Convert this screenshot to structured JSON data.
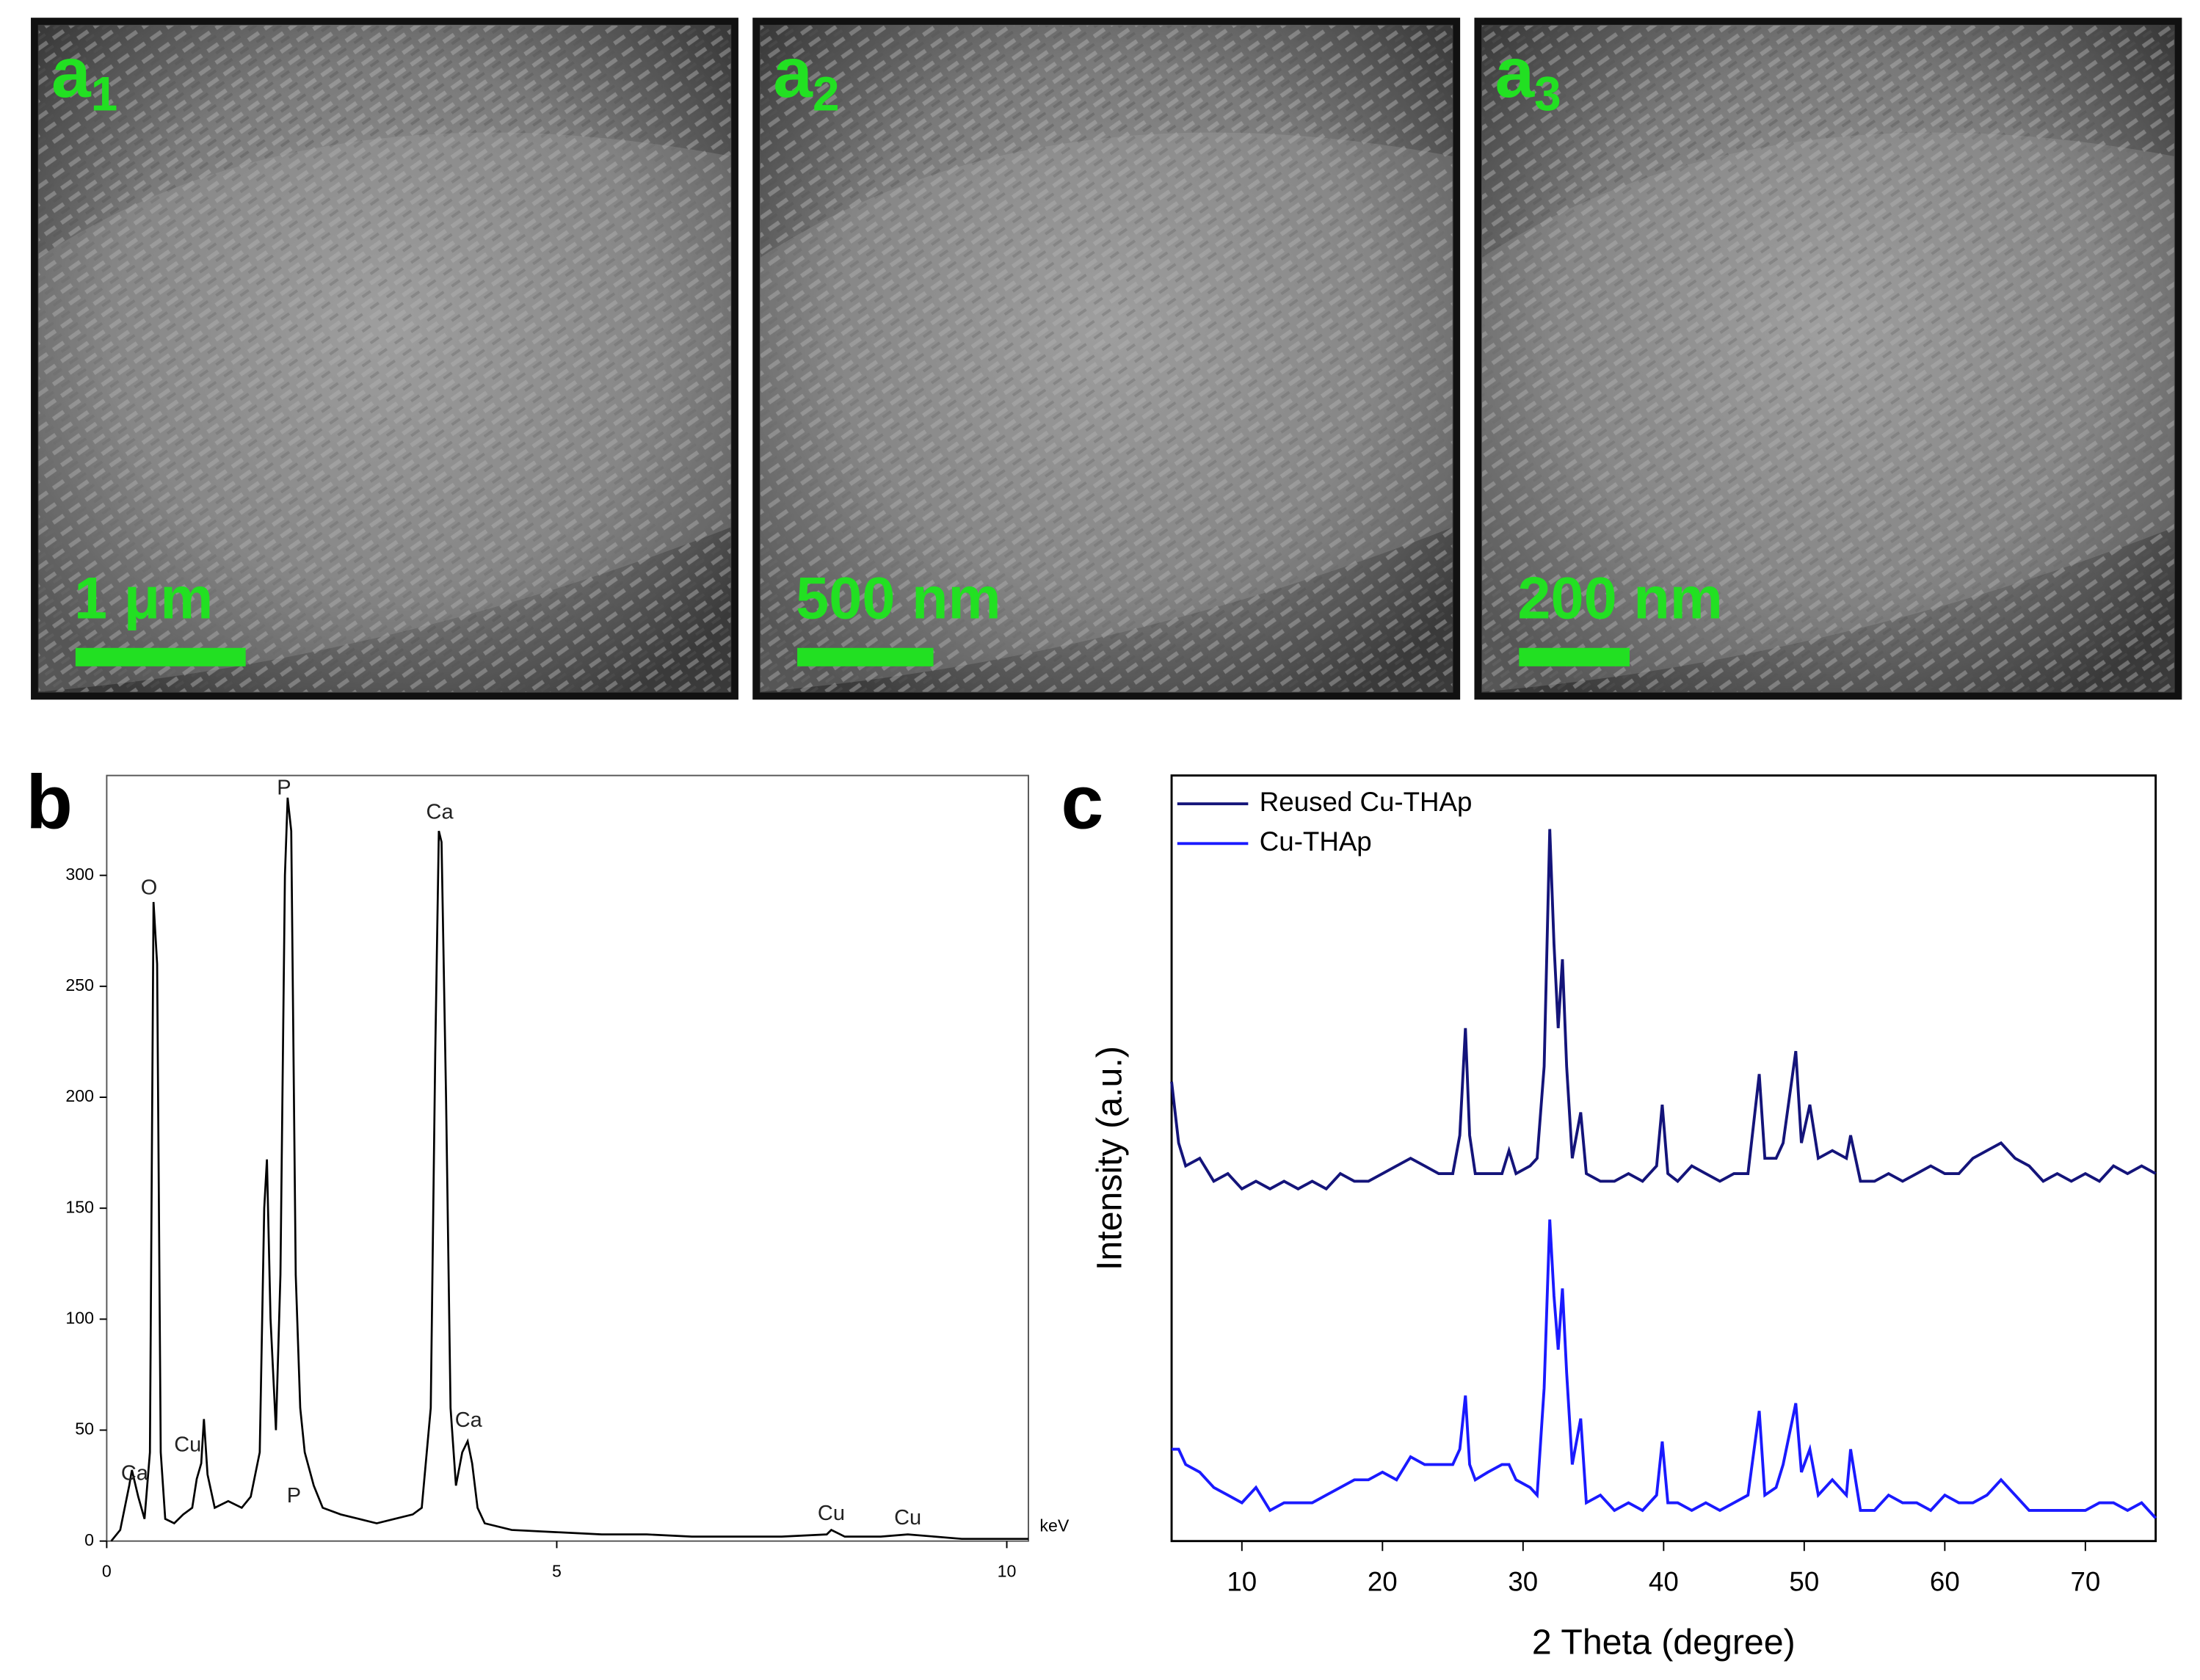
{
  "images": [
    {
      "label": "a",
      "subscript": "1",
      "scale_bar": "1 μm"
    },
    {
      "label": "a",
      "subscript": "2",
      "scale_bar": "500 nm"
    },
    {
      "label": "a",
      "subscript": "3",
      "scale_bar": "200 nm"
    }
  ],
  "chart_data": [
    {
      "type": "line",
      "panel_label": "b",
      "x_label": "keV",
      "x": [
        0.05,
        0.15,
        0.25,
        0.28,
        0.35,
        0.42,
        0.48,
        0.52,
        0.56,
        0.6,
        0.65,
        0.75,
        0.85,
        0.95,
        1.0,
        1.05,
        1.08,
        1.12,
        1.2,
        1.35,
        1.5,
        1.6,
        1.7,
        1.75,
        1.78,
        1.82,
        1.88,
        1.93,
        1.98,
        2.01,
        2.05,
        2.1,
        2.15,
        2.2,
        2.3,
        2.4,
        2.6,
        2.8,
        3.0,
        3.2,
        3.4,
        3.5,
        3.6,
        3.65,
        3.69,
        3.72,
        3.77,
        3.82,
        3.88,
        3.95,
        4.01,
        4.06,
        4.12,
        4.2,
        4.5,
        5.0,
        5.5,
        6.0,
        6.5,
        7.0,
        7.5,
        8.0,
        8.05,
        8.2,
        8.6,
        8.9,
        9.5,
        10.0,
        10.24
      ],
      "values": [
        0,
        5,
        25,
        32,
        20,
        10,
        40,
        288,
        260,
        40,
        10,
        8,
        12,
        15,
        28,
        35,
        55,
        30,
        15,
        18,
        15,
        20,
        40,
        150,
        172,
        100,
        50,
        120,
        300,
        335,
        320,
        120,
        60,
        40,
        25,
        15,
        12,
        10,
        8,
        10,
        12,
        15,
        60,
        220,
        320,
        315,
        200,
        60,
        25,
        40,
        45,
        35,
        15,
        8,
        5,
        4,
        3,
        3,
        2,
        2,
        2,
        3,
        5,
        2,
        2,
        3,
        1,
        1,
        1
      ],
      "color": "#000000",
      "annotations": [
        {
          "label": "Ca",
          "x": 0.31,
          "y": 30
        },
        {
          "label": "O",
          "x": 0.47,
          "y": 294
        },
        {
          "label": "Cu",
          "x": 0.9,
          "y": 43
        },
        {
          "label": "P",
          "x": 1.97,
          "y": 339
        },
        {
          "label": "P",
          "x": 2.08,
          "y": 20
        },
        {
          "label": "Ca",
          "x": 3.7,
          "y": 328
        },
        {
          "label": "Ca",
          "x": 4.02,
          "y": 54
        },
        {
          "label": "Cu",
          "x": 8.05,
          "y": 12
        },
        {
          "label": "Cu",
          "x": 8.9,
          "y": 10
        }
      ],
      "xlim": [
        0,
        10.24
      ],
      "ylim": [
        0,
        345
      ],
      "xticks": [
        0,
        5,
        10
      ],
      "yticks": [
        0,
        50,
        100,
        150,
        200,
        250,
        300
      ]
    },
    {
      "type": "line",
      "panel_label": "c",
      "x_label": "2 Theta (degree)",
      "y_label": "Intensity (a.u.)",
      "legend": "upper left",
      "x": [
        5,
        5.5,
        6,
        7,
        8,
        9,
        10,
        11,
        12,
        13,
        14,
        15,
        16,
        17,
        18,
        19,
        20,
        21,
        22,
        23,
        24,
        25,
        25.5,
        25.9,
        26.2,
        26.6,
        27.5,
        28.5,
        29,
        29.5,
        30.5,
        31,
        31.5,
        31.9,
        32.2,
        32.5,
        32.8,
        33.1,
        33.5,
        34.1,
        34.5,
        35.5,
        36.5,
        37.5,
        38.5,
        39.5,
        39.9,
        40.3,
        41,
        42,
        43,
        44,
        45,
        46,
        46.8,
        47.2,
        48,
        48.5,
        49.4,
        49.8,
        50.4,
        51,
        52,
        53,
        53.3,
        54,
        55,
        56,
        57,
        58,
        59,
        60,
        61,
        62,
        63,
        64,
        65,
        66,
        67,
        68,
        69,
        70,
        71,
        72,
        73,
        74,
        75
      ],
      "series": [
        {
          "name": "Reused Cu-THAp",
          "color": "#14147a",
          "values": [
            60,
            52,
            49,
            50,
            47,
            48,
            46,
            47,
            46,
            47,
            46,
            47,
            46,
            48,
            47,
            47,
            48,
            49,
            50,
            49,
            48,
            48,
            53,
            67,
            53,
            48,
            48,
            48,
            51,
            48,
            49,
            50,
            62,
            93,
            78,
            67,
            76,
            62,
            50,
            56,
            48,
            47,
            47,
            48,
            47,
            49,
            57,
            48,
            47,
            49,
            48,
            47,
            48,
            48,
            61,
            50,
            50,
            52,
            64,
            52,
            57,
            50,
            51,
            50,
            53,
            47,
            47,
            48,
            47,
            48,
            49,
            48,
            48,
            50,
            51,
            52,
            50,
            49,
            47,
            48,
            47,
            48,
            47,
            49,
            48,
            49,
            48
          ]
        },
        {
          "name": "Cu-THAp",
          "color": "#1a1aff",
          "values": [
            12,
            12,
            10,
            9,
            7,
            6,
            5,
            7,
            4,
            5,
            5,
            5,
            6,
            7,
            8,
            8,
            9,
            8,
            11,
            10,
            10,
            10,
            12,
            19,
            10,
            8,
            9,
            10,
            10,
            8,
            7,
            6,
            20,
            42,
            32,
            25,
            33,
            22,
            10,
            16,
            5,
            6,
            4,
            5,
            4,
            6,
            13,
            5,
            5,
            4,
            5,
            4,
            5,
            6,
            17,
            6,
            7,
            10,
            18,
            9,
            12,
            6,
            8,
            6,
            12,
            4,
            4,
            6,
            5,
            5,
            4,
            6,
            5,
            5,
            6,
            8,
            6,
            4,
            4,
            4,
            4,
            4,
            5,
            5,
            4,
            5,
            3
          ]
        }
      ],
      "xlim": [
        5,
        75
      ],
      "ylim": [
        0,
        100
      ],
      "xticks": [
        10,
        20,
        30,
        40,
        50,
        60,
        70
      ]
    }
  ]
}
